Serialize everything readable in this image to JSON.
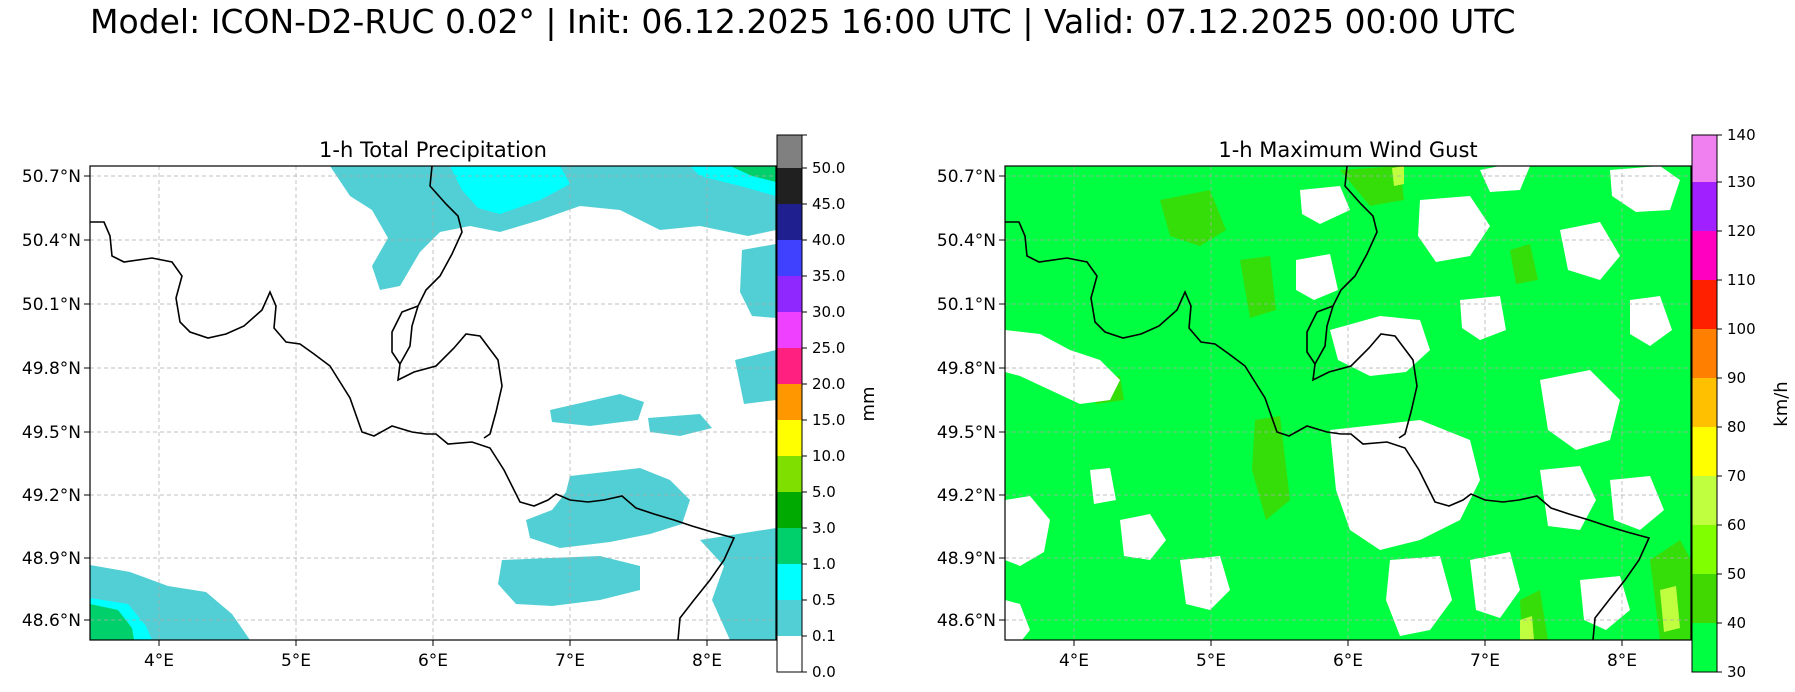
{
  "suptitle": "Model: ICON-D2-RUC 0.02° | Init: 06.12.2025 16:00 UTC | Valid: 07.12.2025 00:00 UTC",
  "lat_ticks": [
    "50.7°N",
    "50.4°N",
    "50.1°N",
    "49.8°N",
    "49.5°N",
    "49.2°N",
    "48.9°N",
    "48.6°N"
  ],
  "lon_ticks": [
    "4°E",
    "5°E",
    "6°E",
    "7°E",
    "8°E"
  ],
  "colors": {
    "precip_levels": [
      "#ffffff",
      "#52cfd4",
      "#00ffff",
      "#00d06b",
      "#00aa00",
      "#7fe000",
      "#ffff00",
      "#ff9800",
      "#ff2080",
      "#f040ff",
      "#8f28ff",
      "#4040ff",
      "#1f1f8f",
      "#202020",
      "#808080"
    ],
    "gust_levels": [
      "#00ff40",
      "#40d800",
      "#80ff00",
      "#c0ff40",
      "#ffff00",
      "#ffc000",
      "#ff8000",
      "#ff2000",
      "#ff00c0",
      "#a020ff",
      "#f080f0"
    ]
  },
  "panels": [
    {
      "title": "1-h Total Precipitation",
      "colorbar_label": "mm",
      "colorbar_ticks": [
        "0.0",
        "0.1",
        "0.5",
        "1.0",
        "3.0",
        "5.0",
        "10.0",
        "15.0",
        "20.0",
        "25.0",
        "30.0",
        "35.0",
        "40.0",
        "45.0",
        "50.0"
      ]
    },
    {
      "title": "1-h Maximum Wind Gust",
      "colorbar_label": "km/h",
      "colorbar_ticks": [
        "30",
        "40",
        "50",
        "60",
        "70",
        "80",
        "90",
        "100",
        "110",
        "120",
        "130",
        "140"
      ]
    }
  ]
}
